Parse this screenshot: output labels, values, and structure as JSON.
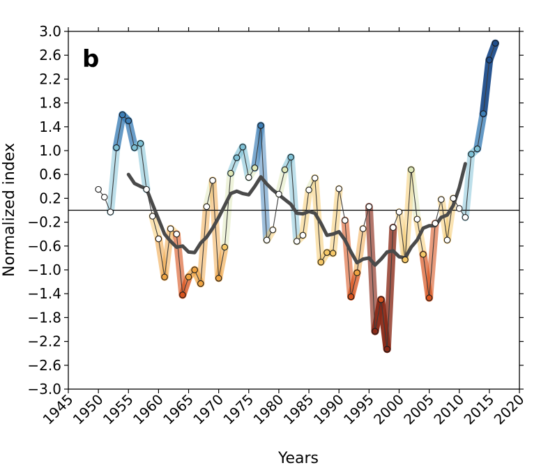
{
  "chart_data": {
    "type": "line",
    "panel_label": "b",
    "xlabel": "Years",
    "ylabel": "Normalized index",
    "xlim": [
      1945,
      2020
    ],
    "ylim": [
      -3.0,
      3.0
    ],
    "xticks": [
      "1945",
      "1950",
      "1955",
      "1960",
      "1965",
      "1970",
      "1975",
      "1980",
      "1985",
      "1990",
      "1995",
      "2000",
      "2005",
      "2010",
      "2015",
      "2020"
    ],
    "yticks": [
      "3.0",
      "2.6",
      "2.2",
      "1.8",
      "1.4",
      "1.0",
      "0.6",
      "0.2",
      "−0.2",
      "−0.6",
      "−1.0",
      "−1.4",
      "−1.8",
      "−2.2",
      "−2.6",
      "−3.0"
    ],
    "grid": false,
    "zero_line": true,
    "colors": {
      "annual_line": "#3a3a3a",
      "smoothed_line": "#4a4a4a",
      "positive_extreme": "#1f4e8c",
      "positive_mid": "#7ec1d6",
      "neutral": "#dfe8b8",
      "negative_mid": "#f0a442",
      "negative_extreme": "#8a2a18"
    },
    "series": [
      {
        "role": "annual",
        "x": [
          1950,
          1951,
          1952,
          1953,
          1954,
          1955,
          1956,
          1957,
          1958,
          1959,
          1960,
          1961,
          1962,
          1963,
          1964,
          1965,
          1966,
          1967,
          1968,
          1969,
          1970,
          1971,
          1972,
          1973,
          1974,
          1975,
          1976,
          1977,
          1978,
          1979,
          1980,
          1981,
          1982,
          1983,
          1984,
          1985,
          1986,
          1987,
          1988,
          1989,
          1990,
          1991,
          1992,
          1993,
          1994,
          1995,
          1996,
          1997,
          1998,
          1999,
          2000,
          2001,
          2002,
          2003,
          2004,
          2005,
          2006,
          2007,
          2008,
          2009,
          2010,
          2011,
          2012,
          2013,
          2014,
          2015,
          2016
        ],
        "y": [
          0.35,
          0.22,
          -0.03,
          1.05,
          1.6,
          1.5,
          1.05,
          1.12,
          0.35,
          -0.1,
          -0.48,
          -1.12,
          -0.31,
          -0.4,
          -1.42,
          -1.12,
          -1.0,
          -1.23,
          0.06,
          0.5,
          -1.14,
          -0.62,
          0.62,
          0.88,
          1.06,
          0.55,
          0.71,
          1.42,
          -0.5,
          -0.33,
          0.27,
          0.68,
          0.89,
          -0.52,
          -0.42,
          0.34,
          0.54,
          -0.87,
          -0.71,
          -0.72,
          0.36,
          -0.17,
          -1.45,
          -1.05,
          -0.31,
          0.06,
          -2.03,
          -1.5,
          -2.33,
          -0.29,
          -0.03,
          -0.83,
          0.68,
          -0.15,
          -0.74,
          -1.47,
          -0.22,
          0.18,
          -0.5,
          0.2,
          0.03,
          -0.12,
          0.94,
          1.03,
          1.62,
          2.52,
          2.8
        ]
      },
      {
        "role": "smoothed",
        "x": [
          1955,
          1956,
          1957,
          1958,
          1959,
          1960,
          1961,
          1962,
          1963,
          1964,
          1965,
          1966,
          1967,
          1968,
          1969,
          1970,
          1971,
          1972,
          1973,
          1974,
          1975,
          1976,
          1977,
          1978,
          1979,
          1980,
          1981,
          1982,
          1983,
          1984,
          1985,
          1986,
          1987,
          1988,
          1989,
          1990,
          1991,
          1992,
          1993,
          1994,
          1995,
          1996,
          1997,
          1998,
          1999,
          2000,
          2001,
          2002,
          2003,
          2004,
          2005,
          2006,
          2007,
          2008,
          2009,
          2010,
          2011
        ],
        "y": [
          0.6,
          0.45,
          0.4,
          0.36,
          0.1,
          -0.15,
          -0.4,
          -0.52,
          -0.62,
          -0.6,
          -0.7,
          -0.71,
          -0.55,
          -0.45,
          -0.3,
          -0.12,
          0.08,
          0.28,
          0.32,
          0.28,
          0.26,
          0.4,
          0.56,
          0.44,
          0.34,
          0.26,
          0.18,
          0.1,
          -0.05,
          -0.06,
          -0.02,
          -0.05,
          -0.22,
          -0.42,
          -0.4,
          -0.36,
          -0.5,
          -0.7,
          -0.88,
          -0.82,
          -0.8,
          -0.92,
          -0.82,
          -0.7,
          -0.68,
          -0.78,
          -0.8,
          -0.62,
          -0.5,
          -0.3,
          -0.26,
          -0.26,
          -0.12,
          -0.08,
          0.08,
          0.38,
          0.78
        ]
      }
    ]
  }
}
